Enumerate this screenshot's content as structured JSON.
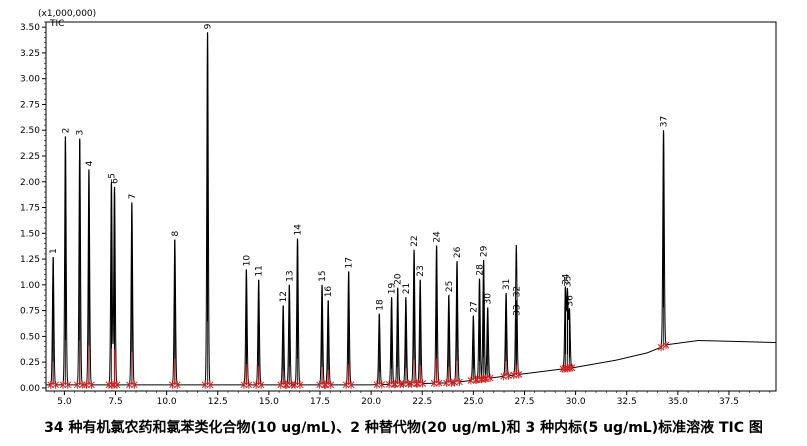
{
  "chart_data": {
    "type": "line",
    "multiplier_label": "(x1,000,000)",
    "trace_label": "TIC",
    "caption": "34 种有机氯农药和氯苯类化合物(10 ug/mL)、2 种替代物(20 ug/mL)和 3 种内标(5 ug/mL)标准溶液 TIC 图",
    "xlim": [
      4.1,
      39.8
    ],
    "ylim": [
      -0.03,
      3.55
    ],
    "x_ticks": [
      "5.0",
      "7.5",
      "10.0",
      "12.5",
      "15.0",
      "17.5",
      "20.0",
      "22.5",
      "25.0",
      "27.5",
      "30.0",
      "32.5",
      "35.0",
      "37.5"
    ],
    "y_ticks": [
      "0.00",
      "0.25",
      "0.50",
      "0.75",
      "1.00",
      "1.25",
      "1.50",
      "1.75",
      "2.00",
      "2.25",
      "2.50",
      "2.75",
      "3.00",
      "3.25",
      "3.50"
    ],
    "peaks": [
      {
        "label": "1",
        "x": 4.45,
        "y": 1.27
      },
      {
        "label": "2",
        "x": 5.05,
        "y": 2.44
      },
      {
        "label": "3",
        "x": 5.75,
        "y": 2.42
      },
      {
        "label": "4",
        "x": 6.2,
        "y": 2.12
      },
      {
        "label": "5",
        "x": 7.3,
        "y": 2.0
      },
      {
        "label": "6",
        "x": 7.45,
        "y": 1.95
      },
      {
        "label": "7",
        "x": 8.3,
        "y": 1.8
      },
      {
        "label": "8",
        "x": 10.4,
        "y": 1.44
      },
      {
        "label": "9",
        "x": 12.0,
        "y": 3.45
      },
      {
        "label": "10",
        "x": 13.9,
        "y": 1.15
      },
      {
        "label": "11",
        "x": 14.5,
        "y": 1.05
      },
      {
        "label": "12",
        "x": 15.7,
        "y": 0.8
      },
      {
        "label": "13",
        "x": 16.0,
        "y": 1.0
      },
      {
        "label": "14",
        "x": 16.4,
        "y": 1.45
      },
      {
        "label": "15",
        "x": 17.6,
        "y": 1.0
      },
      {
        "label": "16",
        "x": 17.9,
        "y": 0.85
      },
      {
        "label": "17",
        "x": 18.9,
        "y": 1.13
      },
      {
        "label": "18",
        "x": 20.4,
        "y": 0.72
      },
      {
        "label": "19",
        "x": 21.0,
        "y": 0.88
      },
      {
        "label": "20",
        "x": 21.3,
        "y": 0.97
      },
      {
        "label": "21",
        "x": 21.7,
        "y": 0.88
      },
      {
        "label": "22",
        "x": 22.1,
        "y": 1.34
      },
      {
        "label": "23",
        "x": 22.4,
        "y": 1.05
      },
      {
        "label": "24",
        "x": 23.2,
        "y": 1.38
      },
      {
        "label": "25",
        "x": 23.8,
        "y": 0.9
      },
      {
        "label": "26",
        "x": 24.2,
        "y": 1.23
      },
      {
        "label": "27",
        "x": 25.0,
        "y": 0.7
      },
      {
        "label": "28",
        "x": 25.3,
        "y": 1.06
      },
      {
        "label": "29",
        "x": 25.5,
        "y": 1.24
      },
      {
        "label": "30",
        "x": 25.7,
        "y": 0.78
      },
      {
        "label": "31",
        "x": 26.6,
        "y": 0.92
      },
      {
        "label": "32",
        "x": 27.1,
        "y": 0.85
      },
      {
        "label": "33",
        "x": 27.1,
        "y": 0.67
      },
      {
        "label": "34",
        "x": 29.5,
        "y": 0.97
      },
      {
        "label": "35",
        "x": 29.6,
        "y": 0.95
      },
      {
        "label": "36",
        "x": 29.7,
        "y": 0.76
      },
      {
        "label": "37",
        "x": 34.3,
        "y": 2.5
      }
    ],
    "baseline": [
      [
        4.1,
        0.03
      ],
      [
        20.0,
        0.03
      ],
      [
        24.0,
        0.05
      ],
      [
        26.0,
        0.1
      ],
      [
        28.0,
        0.15
      ],
      [
        30.0,
        0.2
      ],
      [
        32.0,
        0.27
      ],
      [
        33.5,
        0.34
      ],
      [
        34.5,
        0.42
      ],
      [
        36.0,
        0.46
      ],
      [
        38.0,
        0.45
      ],
      [
        39.8,
        0.44
      ]
    ],
    "grid": false,
    "colors": {
      "trace": "#000000",
      "peak_marker": "#d42020",
      "axis": "#000000"
    }
  }
}
